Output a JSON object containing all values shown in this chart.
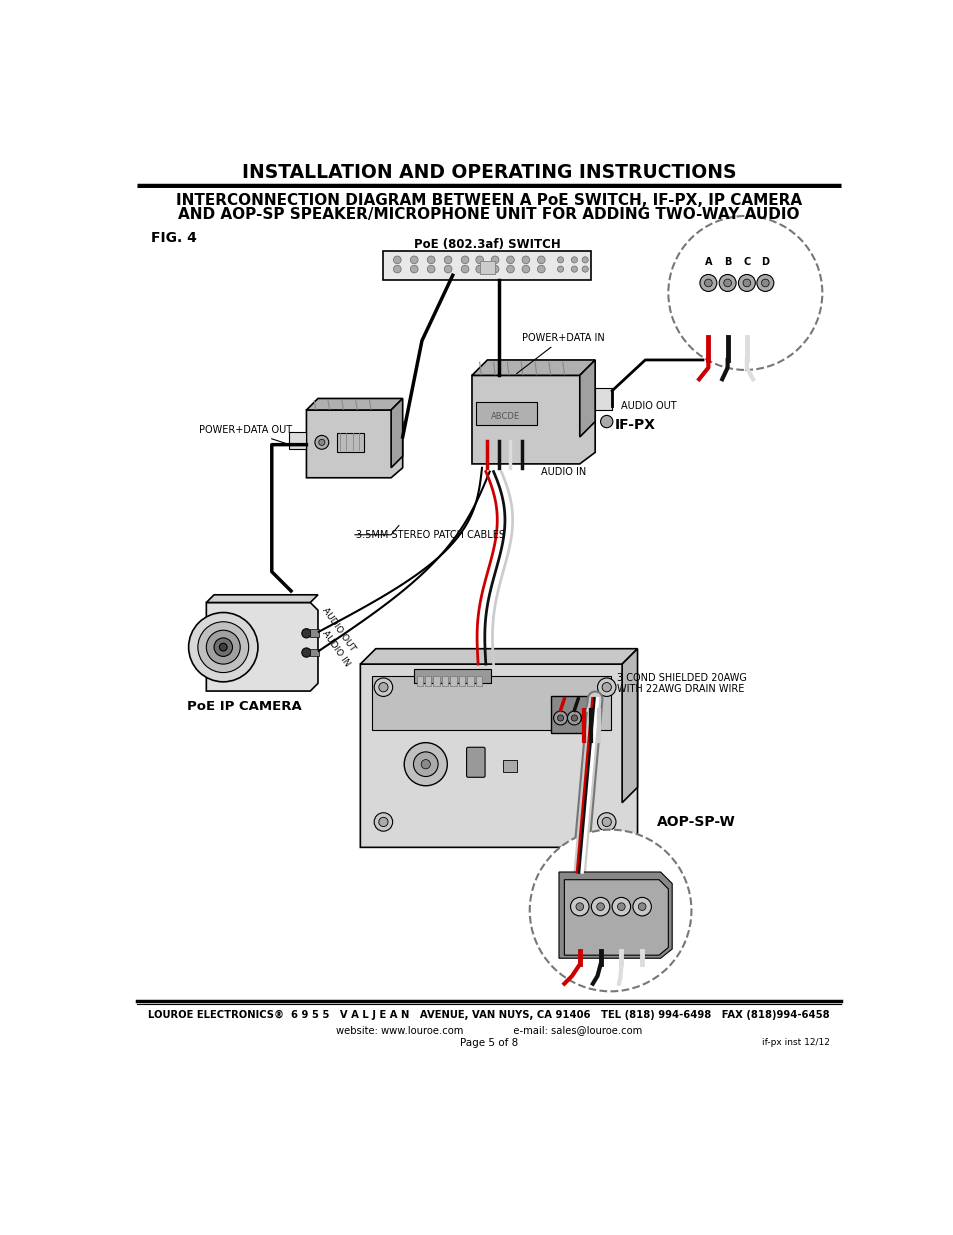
{
  "title": "INSTALLATION AND OPERATING INSTRUCTIONS",
  "subtitle_line1": "INTERCONNECTION DIAGRAM BETWEEN A PoE SWITCH, IF-PX, IP CAMERA",
  "subtitle_line2": "AND AOP-SP SPEAKER/MICROPHONE UNIT FOR ADDING TWO-WAY AUDIO",
  "fig_label": "FIG. 4",
  "footer_line1": "LOUROE ELECTRONICS®  6 9 5 5   V A L J E A N   AVENUE, VAN NUYS, CA 91406   TEL (818) 994-6498   FAX (818)994-6458",
  "footer_line2": "website: www.louroe.com                e-mail: sales@louroe.com",
  "footer_page": "Page 5 of 8",
  "footer_doc": "if-px inst 12/12",
  "bg_color": "#ffffff",
  "poe_switch_label": "PoE (802.3af) SWITCH",
  "ifpx_label": "IF-PX",
  "poe_camera_label": "PoE IP CAMERA",
  "aop_label": "AOP-SP-W",
  "power_data_in": "POWER+DATA IN",
  "power_data_out": "POWER+DATA OUT",
  "audio_out_right": "AUDIO OUT",
  "audio_in_right": "AUDIO IN",
  "audio_out_left": "AUDIO OUT",
  "audio_in_left": "AUDIO IN",
  "patch_cables": "3.5MM STEREO PATCH CABLES",
  "shielded_wire_line1": "3 COND SHIELDED 20AWG",
  "shielded_wire_line2": "WITH 22AWG DRAIN WIRE",
  "red_wire": "#cc0000",
  "black_wire": "#111111",
  "line_color": "#000000"
}
